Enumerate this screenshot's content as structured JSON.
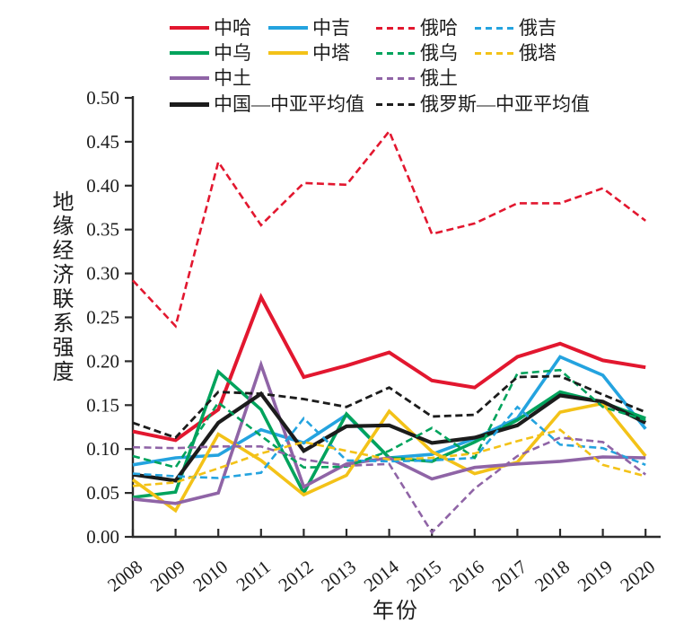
{
  "chart_data": {
    "type": "line",
    "title": "",
    "xlabel": "年份",
    "ylabel": "地缘经济联系强度",
    "x": [
      2008,
      2009,
      2010,
      2011,
      2012,
      2013,
      2014,
      2015,
      2016,
      2017,
      2018,
      2019,
      2020
    ],
    "ylim": [
      0.0,
      0.5
    ],
    "ytick_step": 0.05,
    "grid": false,
    "legend_position": "top",
    "axis_color": "#2b2b2b",
    "series": [
      {
        "name": "中哈",
        "color": "#e2172f",
        "dash": false,
        "width": 4.0,
        "values": [
          0.12,
          0.11,
          0.145,
          0.273,
          0.182,
          0.195,
          0.21,
          0.178,
          0.17,
          0.205,
          0.22,
          0.201,
          0.193
        ]
      },
      {
        "name": "中吉",
        "color": "#24a3df",
        "dash": false,
        "width": 3.6,
        "values": [
          0.082,
          0.09,
          0.093,
          0.122,
          0.107,
          0.139,
          0.09,
          0.094,
          0.112,
          0.135,
          0.205,
          0.184,
          0.123
        ]
      },
      {
        "name": "中乌",
        "color": "#00a35c",
        "dash": false,
        "width": 3.6,
        "values": [
          0.045,
          0.051,
          0.188,
          0.145,
          0.05,
          0.14,
          0.09,
          0.086,
          0.108,
          0.133,
          0.165,
          0.153,
          0.135
        ]
      },
      {
        "name": "中塔",
        "color": "#f3c218",
        "dash": false,
        "width": 3.6,
        "values": [
          0.065,
          0.03,
          0.117,
          0.087,
          0.048,
          0.07,
          0.143,
          0.097,
          0.072,
          0.085,
          0.142,
          0.152,
          0.092
        ]
      },
      {
        "name": "中土",
        "color": "#8f64a6",
        "dash": false,
        "width": 3.6,
        "values": [
          0.043,
          0.038,
          0.05,
          0.196,
          0.057,
          0.083,
          0.09,
          0.066,
          0.079,
          0.083,
          0.086,
          0.091,
          0.09
        ]
      },
      {
        "name": "中国—中亚平均值",
        "color": "#1c1c1c",
        "dash": false,
        "width": 4.2,
        "values": [
          0.071,
          0.064,
          0.13,
          0.163,
          0.098,
          0.126,
          0.127,
          0.107,
          0.113,
          0.127,
          0.161,
          0.154,
          0.13
        ]
      },
      {
        "name": "俄哈",
        "color": "#e2172f",
        "dash": true,
        "width": 2.6,
        "values": [
          0.292,
          0.24,
          0.427,
          0.355,
          0.403,
          0.401,
          0.462,
          0.345,
          0.357,
          0.38,
          0.38,
          0.397,
          0.36
        ]
      },
      {
        "name": "俄吉",
        "color": "#24a3df",
        "dash": true,
        "width": 2.6,
        "values": [
          0.072,
          0.069,
          0.067,
          0.073,
          0.135,
          0.087,
          0.086,
          0.087,
          0.09,
          0.148,
          0.105,
          0.101,
          0.082
        ]
      },
      {
        "name": "俄乌",
        "color": "#00a35c",
        "dash": true,
        "width": 2.6,
        "values": [
          0.092,
          0.079,
          0.153,
          0.115,
          0.079,
          0.08,
          0.098,
          0.124,
          0.09,
          0.186,
          0.19,
          0.148,
          0.133
        ]
      },
      {
        "name": "俄塔",
        "color": "#f3c218",
        "dash": true,
        "width": 2.6,
        "values": [
          0.058,
          0.062,
          0.078,
          0.095,
          0.108,
          0.098,
          0.088,
          0.09,
          0.095,
          0.109,
          0.122,
          0.082,
          0.069
        ]
      },
      {
        "name": "俄土",
        "color": "#8f64a6",
        "dash": true,
        "width": 2.6,
        "values": [
          0.102,
          0.101,
          0.103,
          0.103,
          0.088,
          0.081,
          0.083,
          0.005,
          0.055,
          0.092,
          0.113,
          0.108,
          0.071
        ]
      },
      {
        "name": "俄罗斯—中亚平均值",
        "color": "#1c1c1c",
        "dash": true,
        "width": 2.8,
        "values": [
          0.13,
          0.113,
          0.165,
          0.163,
          0.157,
          0.148,
          0.17,
          0.137,
          0.139,
          0.182,
          0.183,
          0.162,
          0.142
        ]
      }
    ]
  },
  "legend": {
    "items": [
      {
        "label": "中哈",
        "series": 0,
        "row": 0,
        "col": 0
      },
      {
        "label": "中吉",
        "series": 1,
        "row": 0,
        "col": 1
      },
      {
        "label": "俄哈",
        "series": 6,
        "row": 0,
        "col": 2
      },
      {
        "label": "俄吉",
        "series": 7,
        "row": 0,
        "col": 3
      },
      {
        "label": "中乌",
        "series": 2,
        "row": 1,
        "col": 0
      },
      {
        "label": "中塔",
        "series": 3,
        "row": 1,
        "col": 1
      },
      {
        "label": "俄乌",
        "series": 8,
        "row": 1,
        "col": 2
      },
      {
        "label": "俄塔",
        "series": 9,
        "row": 1,
        "col": 3
      },
      {
        "label": "中土",
        "series": 4,
        "row": 2,
        "col": 0
      },
      {
        "label": "俄土",
        "series": 10,
        "row": 2,
        "col": 2
      },
      {
        "label": "中国—中亚平均值",
        "series": 5,
        "row": 3,
        "col": 0
      },
      {
        "label": "俄罗斯—中亚平均值",
        "series": 11,
        "row": 3,
        "col": 2
      }
    ]
  }
}
